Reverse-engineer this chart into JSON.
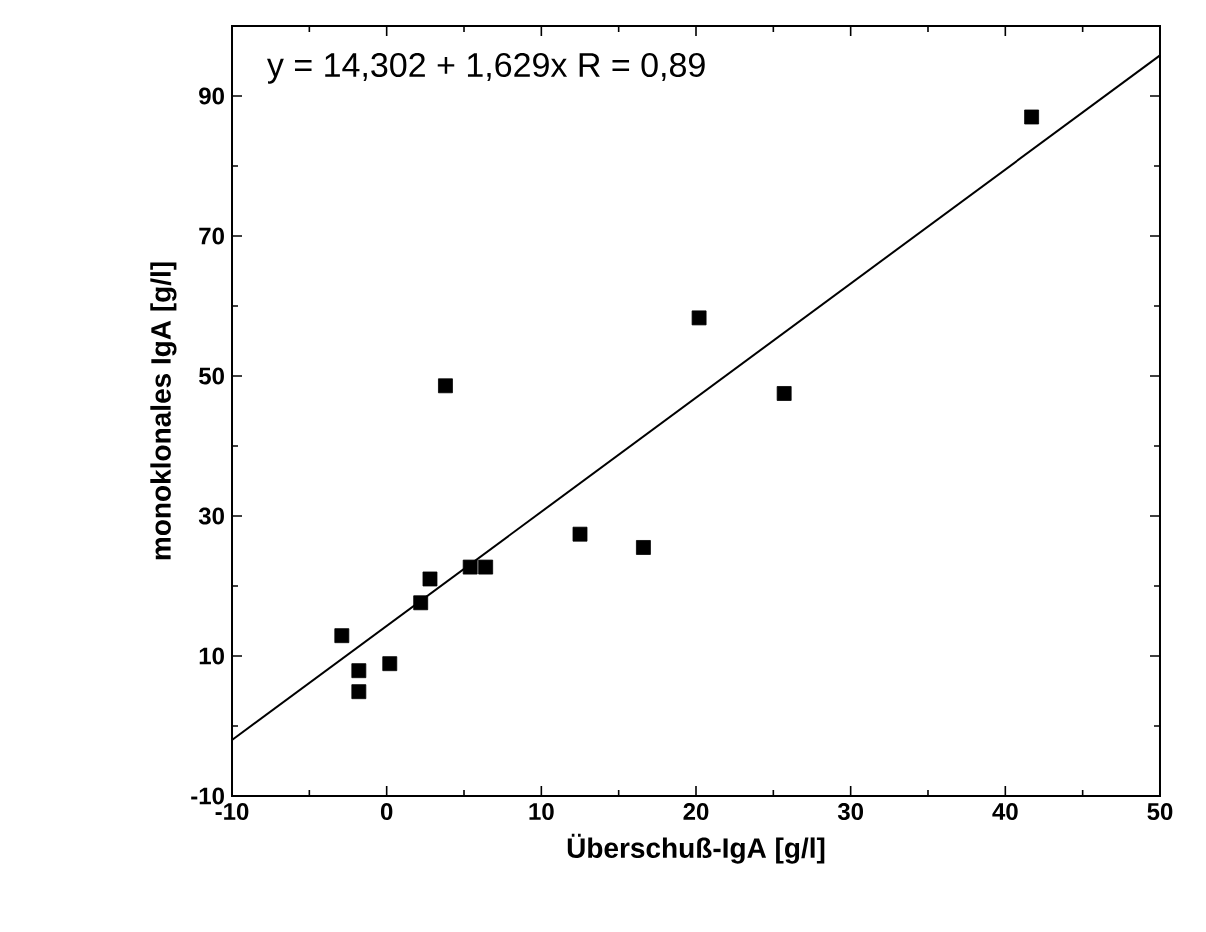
{
  "chart_data": {
    "type": "scatter",
    "xlabel": "Überschuß-IgA [g/l]",
    "ylabel": "monoklonales IgA [g/l]",
    "annotations": [
      "y = 14,302 + 1,629x   R = 0,89"
    ],
    "xlim": [
      -10,
      50
    ],
    "ylim": [
      -10,
      100
    ],
    "xticks": [
      -10,
      0,
      10,
      20,
      30,
      40,
      50
    ],
    "yticks": [
      -10,
      10,
      30,
      50,
      70,
      90
    ],
    "marker": "square",
    "grid": false,
    "series": [
      {
        "color": "#000000",
        "x": [
          41.7,
          20.2,
          3.8,
          25.7,
          12.5,
          16.6,
          5.4,
          6.4,
          2.8,
          2.2,
          -2.9,
          -1.8,
          -1.8,
          0.2
        ],
        "values": [
          87.0,
          58.3,
          48.6,
          47.5,
          27.4,
          25.5,
          22.7,
          22.7,
          21.0,
          17.6,
          12.9,
          7.9,
          4.9,
          8.9
        ]
      },
      {
        "type": "line",
        "marker": "none",
        "color": "#000000",
        "x": [
          -10,
          50
        ],
        "values": [
          -2.0,
          95.8
        ]
      }
    ]
  }
}
